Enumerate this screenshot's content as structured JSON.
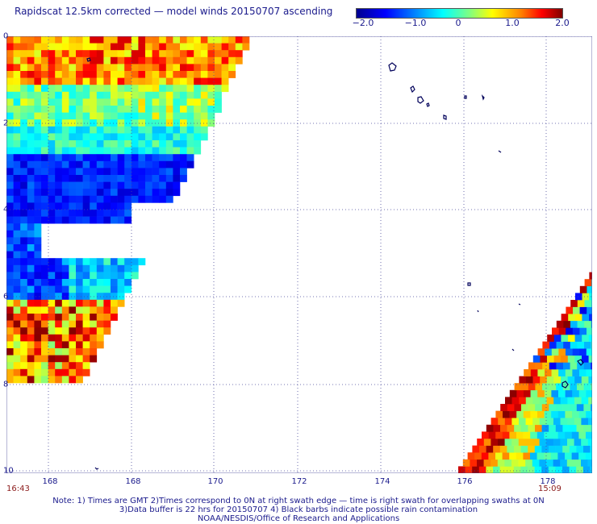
{
  "title": "Rapidscat 12.5km corrected — model winds 20150707 ascending",
  "colorbar": {
    "ticks": [
      "−2.0",
      "−1.0",
      "0",
      "1.0",
      "2.0"
    ],
    "range": [
      -2.0,
      2.0
    ]
  },
  "map": {
    "lon_ticks": [
      "168",
      "168",
      "170",
      "172",
      "174",
      "176",
      "178"
    ],
    "lat_ticks": [
      "0",
      "2",
      "4",
      "6",
      "8",
      "10"
    ],
    "time_left": "16:43",
    "time_right": "15:09"
  },
  "notes": {
    "line1": "Note: 1) Times are GMT 2)Times correspond to 0N at right swath edge — time is right swath for overlapping swaths at 0N",
    "line2": "3)Data buffer is 22 hrs for 20150707 4) Black barbs indicate possible rain contamination",
    "line3": "NOAA/NESDIS/Office of Research and Applications"
  },
  "colors": {
    "text": "#1a1a8c",
    "time": "#8b1a1a",
    "grid": "#4a4a9a"
  }
}
